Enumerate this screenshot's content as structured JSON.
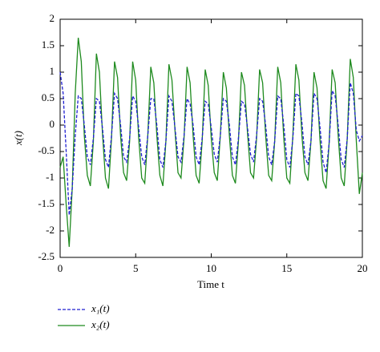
{
  "chart_data": {
    "type": "line",
    "y_label": "x(t)",
    "x_label": "Time t",
    "x": [
      0,
      0.2,
      0.4,
      0.6,
      0.8,
      1,
      1.2,
      1.4,
      1.6,
      1.8,
      2,
      2.2,
      2.4,
      2.6,
      2.8,
      3,
      3.2,
      3.4,
      3.6,
      3.8,
      4,
      4.2,
      4.4,
      4.6,
      4.8,
      5,
      5.2,
      5.4,
      5.6,
      5.8,
      6,
      6.2,
      6.4,
      6.6,
      6.8,
      7,
      7.2,
      7.4,
      7.6,
      7.8,
      8,
      8.2,
      8.4,
      8.6,
      8.8,
      9,
      9.2,
      9.4,
      9.6,
      9.8,
      10,
      10.2,
      10.4,
      10.6,
      10.8,
      11,
      11.2,
      11.4,
      11.6,
      11.8,
      12,
      12.2,
      12.4,
      12.6,
      12.8,
      13,
      13.2,
      13.4,
      13.6,
      13.8,
      14,
      14.2,
      14.4,
      14.6,
      14.8,
      15,
      15.2,
      15.4,
      15.6,
      15.8,
      16,
      16.2,
      16.4,
      16.6,
      16.8,
      17,
      17.2,
      17.4,
      17.6,
      17.8,
      18,
      18.2,
      18.4,
      18.6,
      18.8,
      19,
      19.2,
      19.4,
      19.6,
      19.8,
      20
    ],
    "series": [
      {
        "name": "x₁(t)",
        "color": "#1f1fd0",
        "dash": true,
        "values": [
          1.0,
          0.6,
          -0.5,
          -1.7,
          -1.2,
          -0.2,
          0.55,
          0.5,
          0.0,
          -0.6,
          -0.75,
          -0.25,
          0.5,
          0.45,
          -0.05,
          -0.65,
          -0.8,
          -0.2,
          0.6,
          0.5,
          0.0,
          -0.6,
          -0.7,
          -0.25,
          0.55,
          0.45,
          -0.05,
          -0.6,
          -0.75,
          -0.2,
          0.5,
          0.5,
          0.0,
          -0.65,
          -0.8,
          -0.3,
          0.55,
          0.45,
          -0.05,
          -0.6,
          -0.7,
          -0.2,
          0.5,
          0.4,
          0.0,
          -0.6,
          -0.75,
          -0.25,
          0.45,
          0.4,
          -0.05,
          -0.55,
          -0.7,
          -0.2,
          0.5,
          0.45,
          0.0,
          -0.6,
          -0.75,
          -0.25,
          0.45,
          0.4,
          -0.05,
          -0.55,
          -0.7,
          -0.2,
          0.5,
          0.45,
          0.0,
          -0.6,
          -0.75,
          -0.3,
          0.55,
          0.5,
          0.0,
          -0.65,
          -0.8,
          -0.25,
          0.6,
          0.55,
          0.05,
          -0.6,
          -0.75,
          -0.3,
          0.6,
          0.5,
          -0.05,
          -0.7,
          -0.9,
          -0.35,
          0.65,
          0.55,
          0.0,
          -0.65,
          -0.8,
          -0.25,
          0.8,
          0.6,
          -0.1,
          -0.3,
          -0.2
        ]
      },
      {
        "name": "x₂(t)",
        "color": "#1e8a1e",
        "dash": false,
        "values": [
          -0.8,
          -0.6,
          -1.5,
          -2.3,
          -1.2,
          0.6,
          1.65,
          1.2,
          -0.2,
          -0.95,
          -1.15,
          -0.3,
          1.35,
          1.0,
          -0.15,
          -1.0,
          -1.2,
          -0.25,
          1.2,
          0.9,
          -0.2,
          -0.9,
          -1.05,
          -0.3,
          1.2,
          0.85,
          -0.25,
          -1.0,
          -1.1,
          -0.2,
          1.1,
          0.8,
          -0.2,
          -0.95,
          -1.15,
          -0.3,
          1.15,
          0.85,
          -0.1,
          -0.9,
          -1.0,
          -0.25,
          1.1,
          0.8,
          -0.2,
          -0.95,
          -1.1,
          -0.3,
          1.05,
          0.75,
          -0.25,
          -0.9,
          -1.05,
          -0.2,
          1.0,
          0.7,
          -0.2,
          -0.95,
          -1.1,
          -0.3,
          1.0,
          0.75,
          -0.15,
          -0.9,
          -1.0,
          -0.25,
          1.05,
          0.8,
          -0.2,
          -0.95,
          -1.05,
          -0.3,
          1.1,
          0.8,
          -0.25,
          -1.0,
          -1.1,
          -0.2,
          1.15,
          0.85,
          -0.2,
          -0.9,
          -1.05,
          -0.3,
          1.0,
          0.7,
          -0.3,
          -1.05,
          -1.2,
          -0.35,
          1.05,
          0.8,
          -0.2,
          -1.0,
          -1.15,
          -0.25,
          1.25,
          0.9,
          -0.3,
          -1.3,
          -0.9
        ]
      }
    ],
    "xlim": [
      0,
      20
    ],
    "xticks": [
      0,
      5,
      10,
      15,
      20
    ],
    "ylim": [
      -2.5,
      2
    ],
    "yticks": [
      -2.5,
      -2,
      -1.5,
      -1,
      -0.5,
      0,
      0.5,
      1,
      1.5,
      2
    ]
  }
}
